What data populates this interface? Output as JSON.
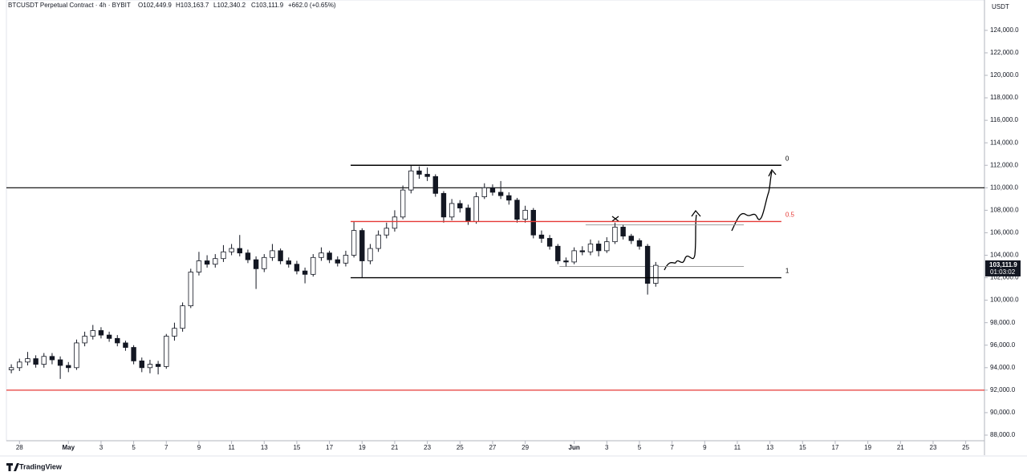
{
  "chart_data": {
    "type": "candlestick",
    "header": {
      "symbol": "BTCUSDT Perpetual Contract · 4h · BYBIT",
      "open": "O102,449.9",
      "high": "H103,163.7",
      "low": "L102,340.2",
      "close": "C103,111.9",
      "change": "+662.0 (+0.65%)"
    },
    "currency": "USDT",
    "last_price": {
      "value": 103111.9,
      "label": "103,111.9",
      "countdown": "01:03:02"
    },
    "brand": "TradingView",
    "xlim": [
      -0.8,
      59.1
    ],
    "ylim": [
      87500,
      126700
    ],
    "xticks": [
      {
        "value": 0,
        "label": "28"
      },
      {
        "value": 3,
        "label": "May"
      },
      {
        "value": 5,
        "label": "3"
      },
      {
        "value": 7,
        "label": "5"
      },
      {
        "value": 9,
        "label": "7"
      },
      {
        "value": 11,
        "label": "9"
      },
      {
        "value": 13,
        "label": "11"
      },
      {
        "value": 15,
        "label": "13"
      },
      {
        "value": 17,
        "label": "15"
      },
      {
        "value": 19,
        "label": "17"
      },
      {
        "value": 21,
        "label": "19"
      },
      {
        "value": 23,
        "label": "21"
      },
      {
        "value": 25,
        "label": "23"
      },
      {
        "value": 27,
        "label": "25"
      },
      {
        "value": 29,
        "label": "27"
      },
      {
        "value": 31,
        "label": "29"
      },
      {
        "value": 34,
        "label": "Jun"
      },
      {
        "value": 36,
        "label": "3"
      },
      {
        "value": 38,
        "label": "5"
      },
      {
        "value": 40,
        "label": "7"
      },
      {
        "value": 42,
        "label": "9"
      },
      {
        "value": 44,
        "label": "11"
      },
      {
        "value": 46,
        "label": "13"
      },
      {
        "value": 48,
        "label": "15"
      },
      {
        "value": 50,
        "label": "17"
      },
      {
        "value": 52,
        "label": "19"
      },
      {
        "value": 54,
        "label": "21"
      },
      {
        "value": 56,
        "label": "23"
      },
      {
        "value": 58,
        "label": "25"
      }
    ],
    "yticks": [
      {
        "value": 88000,
        "label": "88,000.0"
      },
      {
        "value": 90000,
        "label": "90,000.0"
      },
      {
        "value": 92000,
        "label": "92,000.0"
      },
      {
        "value": 94000,
        "label": "94,000.0"
      },
      {
        "value": 96000,
        "label": "96,000.0"
      },
      {
        "value": 98000,
        "label": "98,000.0"
      },
      {
        "value": 100000,
        "label": "100,000.0"
      },
      {
        "value": 102000,
        "label": "102,000.0"
      },
      {
        "value": 104000,
        "label": "104,000.0"
      },
      {
        "value": 106000,
        "label": "106,000.0"
      },
      {
        "value": 108000,
        "label": "108,000.0"
      },
      {
        "value": 110000,
        "label": "110,000.0"
      },
      {
        "value": 112000,
        "label": "112,000.0"
      },
      {
        "value": 114000,
        "label": "114,000.0"
      },
      {
        "value": 116000,
        "label": "116,000.0"
      },
      {
        "value": 118000,
        "label": "118,000.0"
      },
      {
        "value": 120000,
        "label": "120,000.0"
      },
      {
        "value": 122000,
        "label": "122,000.0"
      },
      {
        "value": 124000,
        "label": "124,000.0"
      }
    ],
    "up_color": "#ffffff",
    "down_color": "#131722",
    "x": [
      -0.5,
      0,
      0.5,
      1,
      1.5,
      2,
      2.5,
      3,
      3.5,
      4,
      4.5,
      5,
      5.5,
      6,
      6.5,
      7,
      7.5,
      8,
      8.5,
      9,
      9.5,
      10,
      10.5,
      11,
      11.5,
      12,
      12.5,
      13,
      13.5,
      14,
      14.5,
      15,
      15.5,
      16,
      16.5,
      17,
      17.5,
      18,
      18.5,
      19,
      19.5,
      20,
      20.5,
      21,
      21.5,
      22,
      22.5,
      23,
      23.5,
      24,
      24.5,
      25,
      25.5,
      26,
      26.5,
      27,
      27.5,
      28,
      28.5,
      29,
      29.5,
      30,
      30.5,
      31,
      31.5,
      32,
      32.5,
      33,
      33.5,
      34,
      34.5,
      35,
      35.5,
      36,
      36.5,
      37,
      37.5,
      38,
      38.5,
      39
    ],
    "open": [
      93800,
      94000,
      94500,
      94800,
      94300,
      95000,
      94700,
      94200,
      94000,
      96200,
      96800,
      97300,
      96900,
      96600,
      96200,
      95800,
      94600,
      94000,
      94300,
      94100,
      96800,
      97500,
      99500,
      102500,
      103500,
      103200,
      103700,
      104300,
      104600,
      104200,
      103600,
      102800,
      103800,
      104400,
      103500,
      103200,
      102600,
      102300,
      103800,
      104200,
      103600,
      103300,
      104000,
      106200,
      103500,
      104600,
      105800,
      106400,
      107400,
      109800,
      111500,
      111200,
      111000,
      109500,
      107400,
      108600,
      108200,
      107000,
      109200,
      110000,
      109600,
      109300,
      108900,
      107200,
      108000,
      105800,
      105500,
      104800,
      103500,
      103400,
      104400,
      104300,
      105000,
      104400,
      105200,
      106500,
      105700,
      105300,
      104800,
      101500
    ],
    "high": [
      94300,
      94800,
      95400,
      95100,
      95300,
      95300,
      95000,
      94500,
      96500,
      97200,
      97800,
      97600,
      97200,
      96900,
      96400,
      96000,
      94900,
      94700,
      94600,
      97000,
      98000,
      99800,
      102800,
      104300,
      104000,
      104100,
      104900,
      105000,
      105800,
      104500,
      103900,
      104100,
      105000,
      104600,
      103800,
      103500,
      102900,
      104100,
      104700,
      104400,
      103900,
      104400,
      107000,
      106400,
      105000,
      106200,
      106900,
      108000,
      110200,
      112000,
      111900,
      111800,
      111200,
      109700,
      109000,
      108900,
      108500,
      109600,
      110400,
      110300,
      110600,
      109600,
      109100,
      108400,
      108200,
      106200,
      105800,
      105000,
      103800,
      104700,
      104800,
      105400,
      105300,
      105600,
      106900,
      106700,
      105900,
      105500,
      105000,
      103400
    ],
    "low": [
      93500,
      93700,
      94200,
      94000,
      94000,
      94300,
      93000,
      93600,
      93800,
      95900,
      96500,
      96600,
      96300,
      95900,
      95500,
      94300,
      93600,
      93500,
      93400,
      93900,
      96400,
      97200,
      99300,
      102200,
      102900,
      102900,
      103400,
      104000,
      103900,
      103300,
      101000,
      102500,
      103500,
      103200,
      102900,
      102300,
      101500,
      102100,
      103500,
      103300,
      103000,
      103000,
      103800,
      102000,
      103200,
      104300,
      105500,
      106100,
      107200,
      109500,
      110800,
      110600,
      109200,
      106900,
      107100,
      107800,
      106700,
      106800,
      109000,
      109300,
      109000,
      108500,
      106900,
      106900,
      105500,
      105100,
      104500,
      103200,
      103000,
      103200,
      104000,
      104000,
      103900,
      104200,
      105000,
      105400,
      105000,
      104500,
      100500,
      101200
    ],
    "close": [
      94000,
      94500,
      94800,
      94300,
      95000,
      94700,
      94200,
      94000,
      96200,
      96800,
      97300,
      96900,
      96600,
      96200,
      95800,
      94600,
      94000,
      94300,
      94100,
      96800,
      97500,
      99500,
      102500,
      103500,
      103200,
      103700,
      104300,
      104600,
      104200,
      103600,
      102800,
      103800,
      104400,
      103500,
      103200,
      102600,
      102300,
      103800,
      104200,
      103600,
      103300,
      104000,
      106200,
      103500,
      104600,
      105800,
      106400,
      107400,
      109800,
      111500,
      111200,
      111000,
      109500,
      107400,
      108600,
      108200,
      107000,
      109200,
      110000,
      109600,
      109300,
      108900,
      107200,
      108000,
      105800,
      105500,
      104800,
      103500,
      103400,
      104400,
      104300,
      105000,
      104400,
      105200,
      106500,
      105700,
      105300,
      104800,
      101500,
      103100
    ],
    "fib_levels": [
      {
        "label": "0",
        "value": 112000,
        "color": "#000000"
      },
      {
        "label": "0.5",
        "value": 107000,
        "color": "#e53935"
      },
      {
        "label": "1",
        "value": 102000,
        "color": "#000000"
      }
    ],
    "fib_x": [
      20.3,
      46.7
    ],
    "horizontal_lines": [
      {
        "value": 110000,
        "color": "#000000"
      },
      {
        "value": 92000,
        "color": "#e53935"
      }
    ],
    "ray_lines": [
      {
        "value": 106700,
        "x": [
          34.7,
          44.4
        ],
        "color": "#9e9e9e"
      },
      {
        "value": 103000,
        "x": [
          33.1,
          44.4
        ],
        "color": "#9e9e9e"
      }
    ]
  }
}
